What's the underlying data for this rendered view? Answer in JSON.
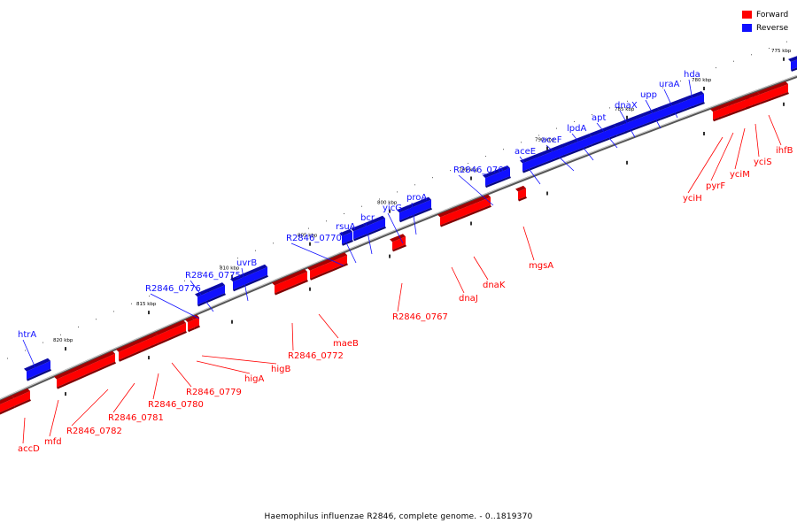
{
  "legend": {
    "forward_label": "Forward",
    "reverse_label": "Reverse",
    "forward_color": "#ff0000",
    "reverse_color": "#1010ff"
  },
  "caption": "Haemophilus influenzae R2846, complete genome. - 0..1819370",
  "ticks": [
    "775 kbp",
    "780 kbp",
    "785 kbp",
    "790 kbp",
    "795 kbp",
    "800 kbp",
    "805 kbp",
    "810 kbp",
    "815 kbp",
    "820 kbp"
  ],
  "genes": [
    {
      "name": "hda",
      "strand": "reverse"
    },
    {
      "name": "uraA",
      "strand": "reverse"
    },
    {
      "name": "upp",
      "strand": "reverse"
    },
    {
      "name": "dnaX",
      "strand": "reverse"
    },
    {
      "name": "apt",
      "strand": "reverse"
    },
    {
      "name": "lpdA",
      "strand": "reverse"
    },
    {
      "name": "aceF",
      "strand": "reverse"
    },
    {
      "name": "aceE",
      "strand": "reverse"
    },
    {
      "name": "R2846_0762",
      "strand": "reverse"
    },
    {
      "name": "proA",
      "strand": "reverse"
    },
    {
      "name": "yicG",
      "strand": "reverse"
    },
    {
      "name": "bcr",
      "strand": "reverse"
    },
    {
      "name": "rsuA",
      "strand": "reverse"
    },
    {
      "name": "R2846_0770",
      "strand": "reverse"
    },
    {
      "name": "uvrB",
      "strand": "reverse"
    },
    {
      "name": "R2846_0775",
      "strand": "reverse"
    },
    {
      "name": "R2846_0776",
      "strand": "reverse"
    },
    {
      "name": "htrA",
      "strand": "reverse"
    },
    {
      "name": "ihfB",
      "strand": "forward"
    },
    {
      "name": "yciS",
      "strand": "forward"
    },
    {
      "name": "yciM",
      "strand": "forward"
    },
    {
      "name": "pyrF",
      "strand": "forward"
    },
    {
      "name": "yciH",
      "strand": "forward"
    },
    {
      "name": "mgsA",
      "strand": "forward"
    },
    {
      "name": "dnaK",
      "strand": "forward"
    },
    {
      "name": "dnaJ",
      "strand": "forward"
    },
    {
      "name": "R2846_0767",
      "strand": "forward"
    },
    {
      "name": "maeB",
      "strand": "forward"
    },
    {
      "name": "R2846_0772",
      "strand": "forward"
    },
    {
      "name": "higB",
      "strand": "forward"
    },
    {
      "name": "higA",
      "strand": "forward"
    },
    {
      "name": "R2846_0779",
      "strand": "forward"
    },
    {
      "name": "R2846_0780",
      "strand": "forward"
    },
    {
      "name": "R2846_0781",
      "strand": "forward"
    },
    {
      "name": "R2846_0782",
      "strand": "forward"
    },
    {
      "name": "mfd",
      "strand": "forward"
    },
    {
      "name": "accD",
      "strand": "forward"
    }
  ]
}
